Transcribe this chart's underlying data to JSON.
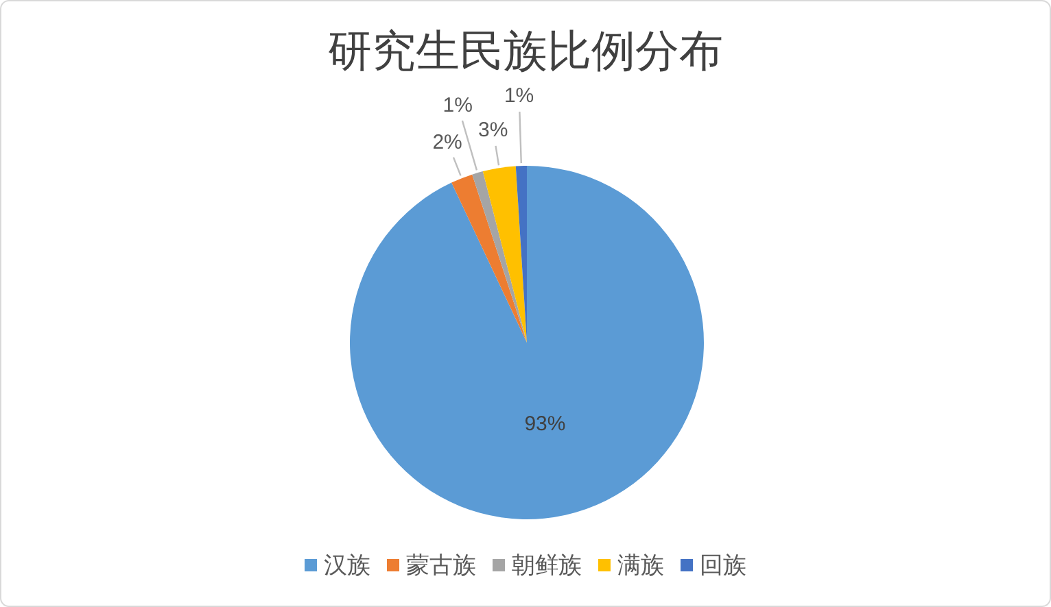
{
  "chart_data": {
    "type": "pie",
    "title": "研究生民族比例分布",
    "categories": [
      "汉族",
      "蒙古族",
      "朝鲜族",
      "满族",
      "回族"
    ],
    "values": [
      93,
      2,
      1,
      3,
      1
    ],
    "colors": [
      "#5b9bd5",
      "#ed7d31",
      "#a5a5a5",
      "#ffc000",
      "#4472c4"
    ],
    "value_labels": [
      "93%",
      "2%",
      "1%",
      "3%",
      "1%"
    ],
    "legend": "bottom"
  }
}
